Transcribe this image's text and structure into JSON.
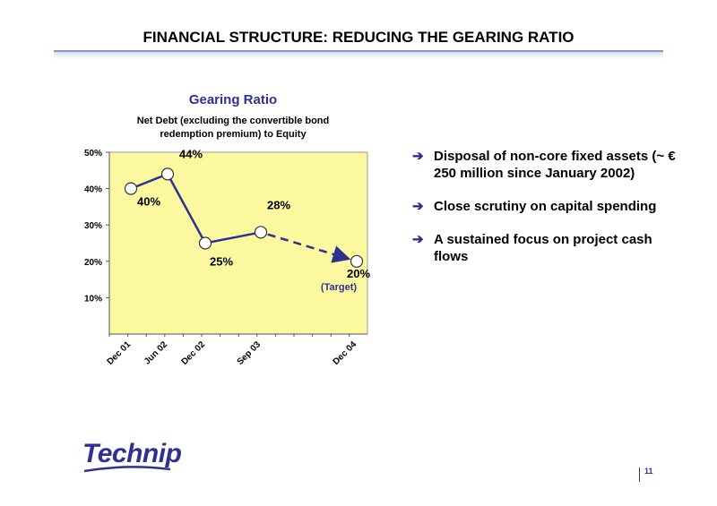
{
  "slide": {
    "title": "FINANCIAL STRUCTURE: REDUCING THE GEARING RATIO",
    "page_number": "11",
    "logo_text": "Technip"
  },
  "chart_data": {
    "type": "line",
    "title": "Gearing Ratio",
    "subtitle": "Net Debt (excluding the convertible bond redemption premium) to Equity",
    "y_tick_labels": [
      "50%",
      "40%",
      "30%",
      "20%",
      "10%"
    ],
    "ylim": [
      0,
      50
    ],
    "x_tick_labels": [
      "Dec 01",
      "Jun 02",
      "Dec 02",
      "Sep 03",
      "Dec 04"
    ],
    "series": [
      {
        "x": [
          "Dec 01",
          "Jun 02",
          "Dec 02",
          "Sep 03",
          "Dec 04"
        ],
        "values": [
          40,
          44,
          25,
          28,
          20
        ],
        "labels": [
          "40%",
          "44%",
          "25%",
          "28%",
          "20%"
        ],
        "projected_from_index": 3
      }
    ],
    "annotation": "(Target)",
    "colors": {
      "line": "#2e3192",
      "plot_bg": "#fbf8a0"
    }
  },
  "bullets": [
    {
      "text": "Disposal of non-core fixed assets (~ € 250 million since January 2002)"
    },
    {
      "text": "Close scrutiny on capital spending"
    },
    {
      "text": "A sustained focus on project cash flows"
    }
  ]
}
